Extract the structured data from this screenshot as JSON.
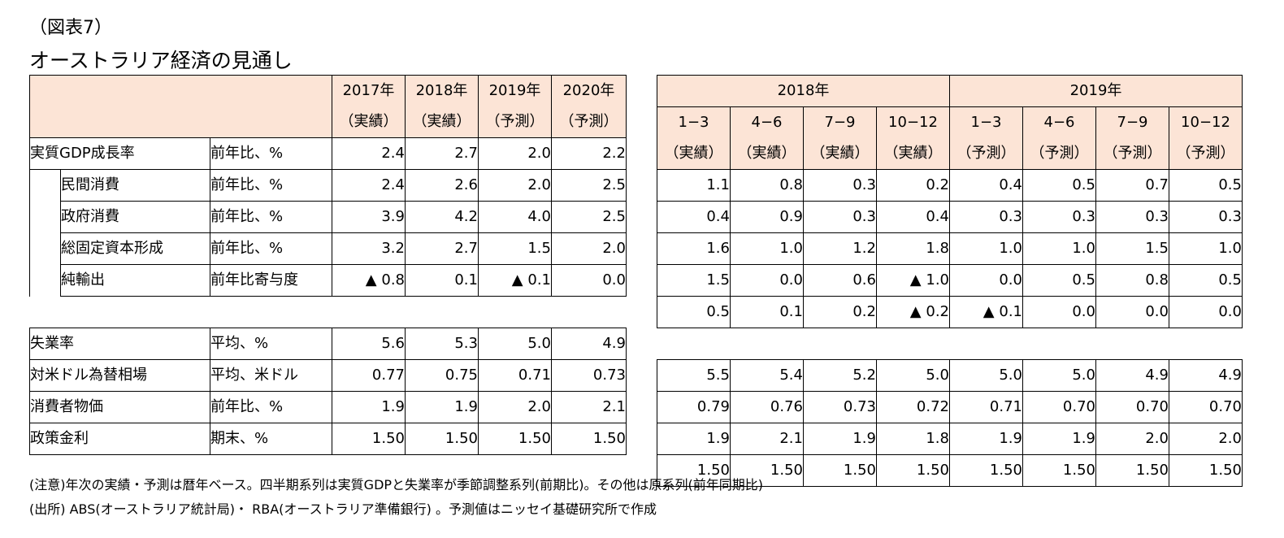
{
  "figure_label": "（図表7）",
  "title": "オーストラリア経済の見通し",
  "annual_header": {
    "columns": [
      {
        "year": "2017年",
        "type": "（実績）"
      },
      {
        "year": "2018年",
        "type": "（実績）"
      },
      {
        "year": "2019年",
        "type": "（予測）"
      },
      {
        "year": "2020年",
        "type": "（予測）"
      }
    ]
  },
  "quarterly_header": {
    "years": [
      "2018年",
      "2019年"
    ],
    "columns": [
      {
        "q": "1−3",
        "type": "（実績）"
      },
      {
        "q": "4−6",
        "type": "（実績）"
      },
      {
        "q": "7−9",
        "type": "（実績）"
      },
      {
        "q": "10−12",
        "type": "（実績）"
      },
      {
        "q": "1−3",
        "type": "（予測）"
      },
      {
        "q": "4−6",
        "type": "（予測）"
      },
      {
        "q": "7−9",
        "type": "（予測）"
      },
      {
        "q": "10−12",
        "type": "（予測）"
      }
    ]
  },
  "rows": [
    {
      "label": "実質GDP成長率",
      "unit": "前年比、%",
      "indent": false,
      "annual": [
        "2.4",
        "2.7",
        "2.0",
        "2.2"
      ],
      "quarterly": [
        "1.1",
        "0.8",
        "0.3",
        "0.2",
        "0.4",
        "0.5",
        "0.7",
        "0.5"
      ]
    },
    {
      "label": "民間消費",
      "unit": "前年比、%",
      "indent": true,
      "annual": [
        "2.4",
        "2.6",
        "2.0",
        "2.5"
      ],
      "quarterly": [
        "0.4",
        "0.9",
        "0.3",
        "0.4",
        "0.3",
        "0.3",
        "0.3",
        "0.3"
      ]
    },
    {
      "label": "政府消費",
      "unit": "前年比、%",
      "indent": true,
      "annual": [
        "3.9",
        "4.2",
        "4.0",
        "2.5"
      ],
      "quarterly": [
        "1.6",
        "1.0",
        "1.2",
        "1.8",
        "1.0",
        "1.0",
        "1.5",
        "1.0"
      ]
    },
    {
      "label": "総固定資本形成",
      "unit": "前年比、%",
      "indent": true,
      "annual": [
        "3.2",
        "2.7",
        "1.5",
        "2.0"
      ],
      "quarterly": [
        "1.5",
        "0.0",
        "0.6",
        "▲ 1.0",
        "0.0",
        "0.5",
        "0.8",
        "0.5"
      ]
    },
    {
      "label": "純輸出",
      "unit": "前年比寄与度",
      "indent": true,
      "annual": [
        "▲ 0.8",
        "0.1",
        "▲ 0.1",
        "0.0"
      ],
      "quarterly": [
        "0.5",
        "0.1",
        "0.2",
        "▲ 0.2",
        "▲ 0.1",
        "0.0",
        "0.0",
        "0.0"
      ]
    },
    {
      "label": "失業率",
      "unit": "平均、%",
      "indent": false,
      "annual": [
        "5.6",
        "5.3",
        "5.0",
        "4.9"
      ],
      "quarterly": [
        "5.5",
        "5.4",
        "5.2",
        "5.0",
        "5.0",
        "5.0",
        "4.9",
        "4.9"
      ]
    },
    {
      "label": "対米ドル為替相場",
      "unit": "平均、米ドル",
      "indent": false,
      "annual": [
        "0.77",
        "0.75",
        "0.71",
        "0.73"
      ],
      "quarterly": [
        "0.79",
        "0.76",
        "0.73",
        "0.72",
        "0.71",
        "0.70",
        "0.70",
        "0.70"
      ]
    },
    {
      "label": "消費者物価",
      "unit": "前年比、%",
      "indent": false,
      "annual": [
        "1.9",
        "1.9",
        "2.0",
        "2.1"
      ],
      "quarterly": [
        "1.9",
        "2.1",
        "1.9",
        "1.8",
        "1.9",
        "1.9",
        "2.0",
        "2.0"
      ]
    },
    {
      "label": "政策金利",
      "unit": "期末、%",
      "indent": false,
      "annual": [
        "1.50",
        "1.50",
        "1.50",
        "1.50"
      ],
      "quarterly": [
        "1.50",
        "1.50",
        "1.50",
        "1.50",
        "1.50",
        "1.50",
        "1.50",
        "1.50"
      ]
    }
  ],
  "notes": [
    "(注意)年次の実績・予測は暦年ベース。四半期系列は実質GDPと失業率が季節調整系列(前期比)。その他は原系列(前年同期比)",
    "(出所) ABS(オーストラリア統計局)・ RBA(オーストラリア準備銀行) 。予測値はニッセイ基礎研究所で作成"
  ],
  "colors": {
    "header_fill": "#FCE4D6",
    "border": "#000000"
  }
}
